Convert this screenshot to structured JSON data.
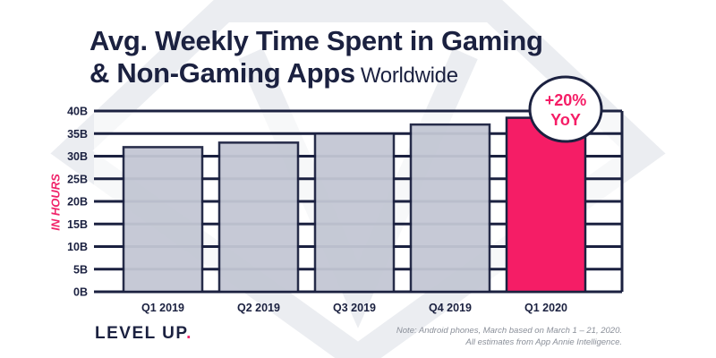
{
  "header": {
    "title_line1": "Avg. Weekly Time Spent in Gaming",
    "title_line2": "& Non-Gaming Apps",
    "subtitle": "Worldwide"
  },
  "chart_data": {
    "type": "bar",
    "title": "Avg. Weekly Time Spent in Gaming & Non-Gaming Apps Worldwide",
    "xlabel": "",
    "ylabel": "IN HOURS",
    "categories": [
      "Q1 2019",
      "Q2 2019",
      "Q3 2019",
      "Q4 2019",
      "Q1 2020"
    ],
    "values": [
      32,
      33,
      35,
      37,
      38.5
    ],
    "ylim": [
      0,
      40
    ],
    "yticks": [
      0,
      5,
      10,
      15,
      20,
      25,
      30,
      35,
      40
    ],
    "ytick_labels": [
      "0B",
      "5B",
      "10B",
      "15B",
      "20B",
      "25B",
      "30B",
      "35B",
      "40B"
    ],
    "grid": true,
    "colors": {
      "bar": "#c3c7d4",
      "highlight": "#f51d66",
      "outline": "#1b2140"
    },
    "annotation": {
      "line1": "+20%",
      "line2": "YoY"
    }
  },
  "footer": {
    "logo_main": "LEVEL UP",
    "logo_dot": ".",
    "note_line1": "Note: Android phones, March based on March 1 – 21, 2020.",
    "note_line2": "All estimates from App Annie Intelligence."
  }
}
